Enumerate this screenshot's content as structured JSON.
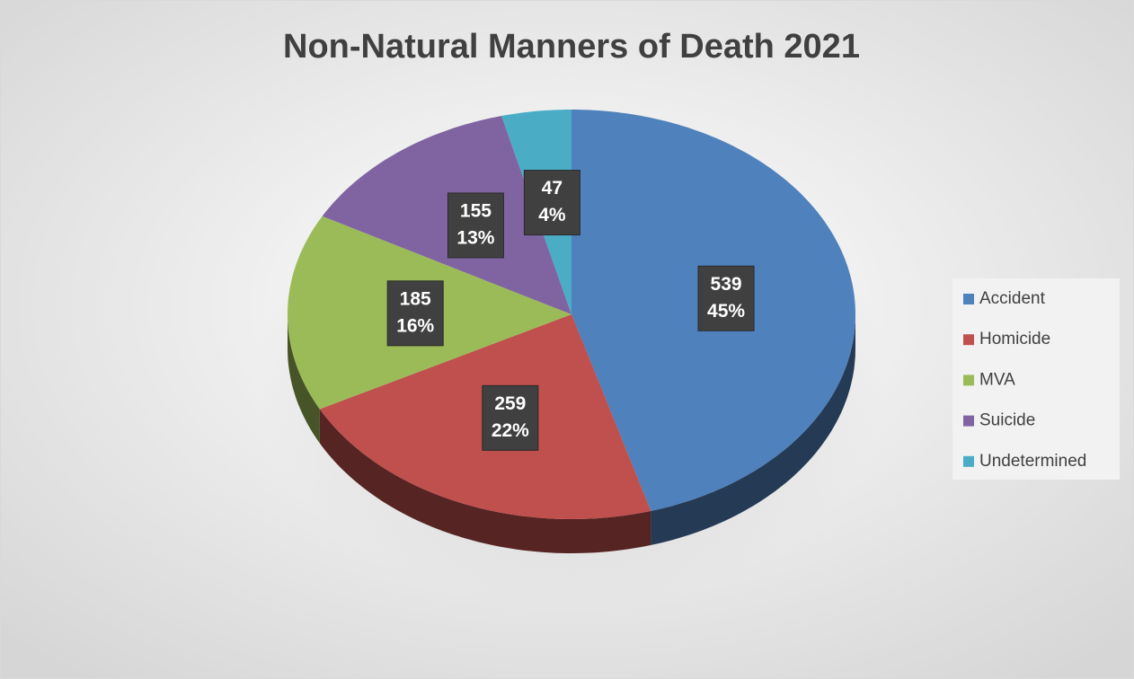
{
  "chart_data": {
    "type": "pie3d",
    "title": "Non-Natural Manners of Death 2021",
    "categories": [
      "Accident",
      "Homicide",
      "MVA",
      "Suicide",
      "Undetermined"
    ],
    "values": [
      539,
      259,
      185,
      155,
      47
    ],
    "percentages": [
      45,
      22,
      16,
      13,
      4
    ],
    "percentage_labels": [
      "45%",
      "22%",
      "16%",
      "13%",
      "4%"
    ],
    "colors": [
      "#4f81bd",
      "#c0504d",
      "#9bbb59",
      "#8064a2",
      "#4bacc6"
    ],
    "legend": "right"
  }
}
